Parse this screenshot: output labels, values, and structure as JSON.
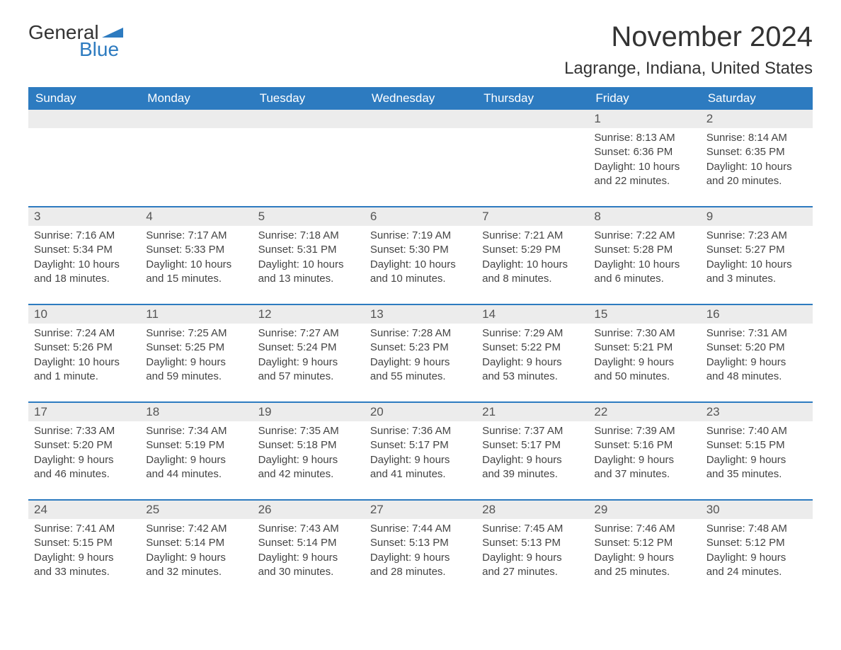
{
  "logo": {
    "text1": "General",
    "text2": "Blue",
    "flag_color": "#2d7bc0"
  },
  "title": "November 2024",
  "location": "Lagrange, Indiana, United States",
  "colors": {
    "header_bg": "#2d7bc0",
    "header_text": "#ffffff",
    "daynum_bg": "#ececec",
    "border": "#2d7bc0",
    "body_text": "#444444"
  },
  "day_names": [
    "Sunday",
    "Monday",
    "Tuesday",
    "Wednesday",
    "Thursday",
    "Friday",
    "Saturday"
  ],
  "weeks": [
    [
      {
        "empty": true
      },
      {
        "empty": true
      },
      {
        "empty": true
      },
      {
        "empty": true
      },
      {
        "empty": true
      },
      {
        "num": "1",
        "sunrise": "Sunrise: 8:13 AM",
        "sunset": "Sunset: 6:36 PM",
        "day1": "Daylight: 10 hours",
        "day2": "and 22 minutes."
      },
      {
        "num": "2",
        "sunrise": "Sunrise: 8:14 AM",
        "sunset": "Sunset: 6:35 PM",
        "day1": "Daylight: 10 hours",
        "day2": "and 20 minutes."
      }
    ],
    [
      {
        "num": "3",
        "sunrise": "Sunrise: 7:16 AM",
        "sunset": "Sunset: 5:34 PM",
        "day1": "Daylight: 10 hours",
        "day2": "and 18 minutes."
      },
      {
        "num": "4",
        "sunrise": "Sunrise: 7:17 AM",
        "sunset": "Sunset: 5:33 PM",
        "day1": "Daylight: 10 hours",
        "day2": "and 15 minutes."
      },
      {
        "num": "5",
        "sunrise": "Sunrise: 7:18 AM",
        "sunset": "Sunset: 5:31 PM",
        "day1": "Daylight: 10 hours",
        "day2": "and 13 minutes."
      },
      {
        "num": "6",
        "sunrise": "Sunrise: 7:19 AM",
        "sunset": "Sunset: 5:30 PM",
        "day1": "Daylight: 10 hours",
        "day2": "and 10 minutes."
      },
      {
        "num": "7",
        "sunrise": "Sunrise: 7:21 AM",
        "sunset": "Sunset: 5:29 PM",
        "day1": "Daylight: 10 hours",
        "day2": "and 8 minutes."
      },
      {
        "num": "8",
        "sunrise": "Sunrise: 7:22 AM",
        "sunset": "Sunset: 5:28 PM",
        "day1": "Daylight: 10 hours",
        "day2": "and 6 minutes."
      },
      {
        "num": "9",
        "sunrise": "Sunrise: 7:23 AM",
        "sunset": "Sunset: 5:27 PM",
        "day1": "Daylight: 10 hours",
        "day2": "and 3 minutes."
      }
    ],
    [
      {
        "num": "10",
        "sunrise": "Sunrise: 7:24 AM",
        "sunset": "Sunset: 5:26 PM",
        "day1": "Daylight: 10 hours",
        "day2": "and 1 minute."
      },
      {
        "num": "11",
        "sunrise": "Sunrise: 7:25 AM",
        "sunset": "Sunset: 5:25 PM",
        "day1": "Daylight: 9 hours",
        "day2": "and 59 minutes."
      },
      {
        "num": "12",
        "sunrise": "Sunrise: 7:27 AM",
        "sunset": "Sunset: 5:24 PM",
        "day1": "Daylight: 9 hours",
        "day2": "and 57 minutes."
      },
      {
        "num": "13",
        "sunrise": "Sunrise: 7:28 AM",
        "sunset": "Sunset: 5:23 PM",
        "day1": "Daylight: 9 hours",
        "day2": "and 55 minutes."
      },
      {
        "num": "14",
        "sunrise": "Sunrise: 7:29 AM",
        "sunset": "Sunset: 5:22 PM",
        "day1": "Daylight: 9 hours",
        "day2": "and 53 minutes."
      },
      {
        "num": "15",
        "sunrise": "Sunrise: 7:30 AM",
        "sunset": "Sunset: 5:21 PM",
        "day1": "Daylight: 9 hours",
        "day2": "and 50 minutes."
      },
      {
        "num": "16",
        "sunrise": "Sunrise: 7:31 AM",
        "sunset": "Sunset: 5:20 PM",
        "day1": "Daylight: 9 hours",
        "day2": "and 48 minutes."
      }
    ],
    [
      {
        "num": "17",
        "sunrise": "Sunrise: 7:33 AM",
        "sunset": "Sunset: 5:20 PM",
        "day1": "Daylight: 9 hours",
        "day2": "and 46 minutes."
      },
      {
        "num": "18",
        "sunrise": "Sunrise: 7:34 AM",
        "sunset": "Sunset: 5:19 PM",
        "day1": "Daylight: 9 hours",
        "day2": "and 44 minutes."
      },
      {
        "num": "19",
        "sunrise": "Sunrise: 7:35 AM",
        "sunset": "Sunset: 5:18 PM",
        "day1": "Daylight: 9 hours",
        "day2": "and 42 minutes."
      },
      {
        "num": "20",
        "sunrise": "Sunrise: 7:36 AM",
        "sunset": "Sunset: 5:17 PM",
        "day1": "Daylight: 9 hours",
        "day2": "and 41 minutes."
      },
      {
        "num": "21",
        "sunrise": "Sunrise: 7:37 AM",
        "sunset": "Sunset: 5:17 PM",
        "day1": "Daylight: 9 hours",
        "day2": "and 39 minutes."
      },
      {
        "num": "22",
        "sunrise": "Sunrise: 7:39 AM",
        "sunset": "Sunset: 5:16 PM",
        "day1": "Daylight: 9 hours",
        "day2": "and 37 minutes."
      },
      {
        "num": "23",
        "sunrise": "Sunrise: 7:40 AM",
        "sunset": "Sunset: 5:15 PM",
        "day1": "Daylight: 9 hours",
        "day2": "and 35 minutes."
      }
    ],
    [
      {
        "num": "24",
        "sunrise": "Sunrise: 7:41 AM",
        "sunset": "Sunset: 5:15 PM",
        "day1": "Daylight: 9 hours",
        "day2": "and 33 minutes."
      },
      {
        "num": "25",
        "sunrise": "Sunrise: 7:42 AM",
        "sunset": "Sunset: 5:14 PM",
        "day1": "Daylight: 9 hours",
        "day2": "and 32 minutes."
      },
      {
        "num": "26",
        "sunrise": "Sunrise: 7:43 AM",
        "sunset": "Sunset: 5:14 PM",
        "day1": "Daylight: 9 hours",
        "day2": "and 30 minutes."
      },
      {
        "num": "27",
        "sunrise": "Sunrise: 7:44 AM",
        "sunset": "Sunset: 5:13 PM",
        "day1": "Daylight: 9 hours",
        "day2": "and 28 minutes."
      },
      {
        "num": "28",
        "sunrise": "Sunrise: 7:45 AM",
        "sunset": "Sunset: 5:13 PM",
        "day1": "Daylight: 9 hours",
        "day2": "and 27 minutes."
      },
      {
        "num": "29",
        "sunrise": "Sunrise: 7:46 AM",
        "sunset": "Sunset: 5:12 PM",
        "day1": "Daylight: 9 hours",
        "day2": "and 25 minutes."
      },
      {
        "num": "30",
        "sunrise": "Sunrise: 7:48 AM",
        "sunset": "Sunset: 5:12 PM",
        "day1": "Daylight: 9 hours",
        "day2": "and 24 minutes."
      }
    ]
  ]
}
